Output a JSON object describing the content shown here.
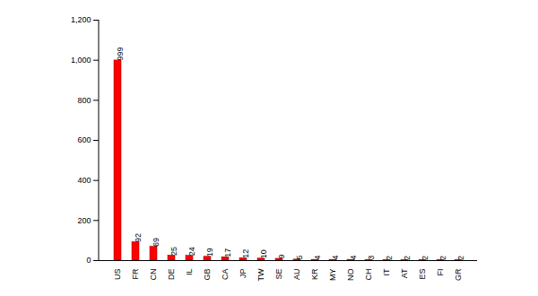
{
  "chart_data": {
    "type": "bar",
    "categories": [
      "US",
      "FR",
      "CN",
      "DE",
      "IL",
      "GB",
      "CA",
      "JP",
      "TW",
      "SE",
      "AU",
      "KR",
      "MY",
      "NO",
      "CH",
      "IT",
      "AT",
      "ES",
      "FI",
      "GR"
    ],
    "values": [
      999,
      92,
      69,
      25,
      24,
      19,
      17,
      12,
      10,
      9,
      5,
      4,
      4,
      4,
      3,
      2,
      2,
      2,
      2,
      2
    ],
    "color": "#ff0000",
    "ylim": [
      0,
      1200
    ],
    "yticks": [
      0,
      200,
      400,
      600,
      800,
      {
        "value": 1000,
        "label": "1,000"
      },
      {
        "value": 1200,
        "label": "1,200"
      }
    ],
    "grid": false,
    "data_labels": true
  }
}
